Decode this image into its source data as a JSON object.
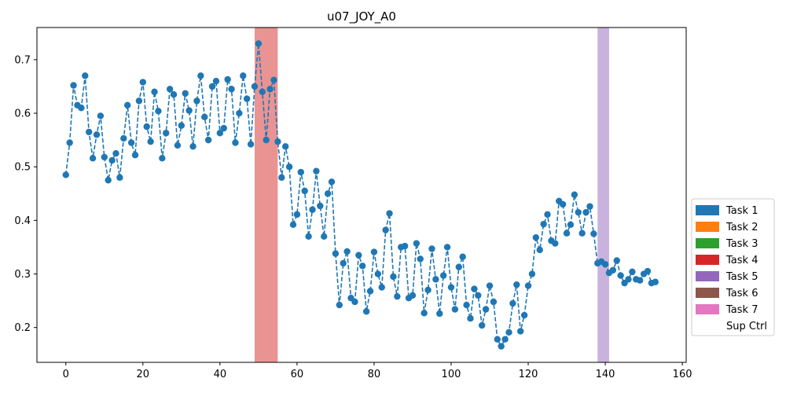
{
  "chart_data": {
    "type": "line",
    "title": "u07_JOY_A0",
    "xlabel": "",
    "ylabel": "",
    "xlim": [
      -7.5,
      161
    ],
    "ylim": [
      0.135,
      0.76
    ],
    "x_ticks": [
      0,
      20,
      40,
      60,
      80,
      100,
      120,
      140,
      160
    ],
    "y_ticks": [
      0.2,
      0.3,
      0.4,
      0.5,
      0.6,
      0.7
    ],
    "grid": false,
    "legend_position": "right",
    "series": [
      {
        "style": "dashed line with circle markers",
        "color": "#1f77b4",
        "x": [
          0,
          1,
          2,
          3,
          4,
          5,
          6,
          7,
          8,
          9,
          10,
          11,
          12,
          13,
          14,
          15,
          16,
          17,
          18,
          19,
          20,
          21,
          22,
          23,
          24,
          25,
          26,
          27,
          28,
          29,
          30,
          31,
          32,
          33,
          34,
          35,
          36,
          37,
          38,
          39,
          40,
          41,
          42,
          43,
          44,
          45,
          46,
          47,
          48,
          49,
          50,
          51,
          52,
          53,
          54,
          55,
          56,
          57,
          58,
          59,
          60,
          61,
          62,
          63,
          64,
          65,
          66,
          67,
          68,
          69,
          70,
          71,
          72,
          73,
          74,
          75,
          76,
          77,
          78,
          79,
          80,
          81,
          82,
          83,
          84,
          85,
          86,
          87,
          88,
          89,
          90,
          91,
          92,
          93,
          94,
          95,
          96,
          97,
          98,
          99,
          100,
          101,
          102,
          103,
          104,
          105,
          106,
          107,
          108,
          109,
          110,
          111,
          112,
          113,
          114,
          115,
          116,
          117,
          118,
          119,
          120,
          121,
          122,
          123,
          124,
          125,
          126,
          127,
          128,
          129,
          130,
          131,
          132,
          133,
          134,
          135,
          136,
          137,
          138,
          139,
          140,
          141,
          142,
          143,
          144,
          145,
          146,
          147,
          148,
          149,
          150,
          151,
          152,
          153
        ],
        "y": [
          0.485,
          0.545,
          0.652,
          0.615,
          0.61,
          0.67,
          0.565,
          0.516,
          0.56,
          0.595,
          0.518,
          0.475,
          0.512,
          0.525,
          0.48,
          0.553,
          0.615,
          0.545,
          0.522,
          0.623,
          0.658,
          0.575,
          0.547,
          0.64,
          0.604,
          0.516,
          0.563,
          0.645,
          0.635,
          0.54,
          0.577,
          0.637,
          0.605,
          0.538,
          0.623,
          0.67,
          0.593,
          0.55,
          0.65,
          0.66,
          0.563,
          0.572,
          0.663,
          0.645,
          0.545,
          0.6,
          0.67,
          0.627,
          0.542,
          0.65,
          0.73,
          0.64,
          0.55,
          0.645,
          0.662,
          0.547,
          0.48,
          0.538,
          0.5,
          0.392,
          0.411,
          0.49,
          0.455,
          0.37,
          0.42,
          0.492,
          0.427,
          0.37,
          0.45,
          0.472,
          0.338,
          0.242,
          0.32,
          0.342,
          0.255,
          0.248,
          0.335,
          0.315,
          0.23,
          0.268,
          0.341,
          0.3,
          0.275,
          0.382,
          0.413,
          0.295,
          0.258,
          0.35,
          0.352,
          0.255,
          0.26,
          0.357,
          0.328,
          0.227,
          0.27,
          0.347,
          0.29,
          0.226,
          0.297,
          0.35,
          0.275,
          0.234,
          0.313,
          0.332,
          0.242,
          0.217,
          0.272,
          0.26,
          0.204,
          0.234,
          0.278,
          0.248,
          0.178,
          0.165,
          0.178,
          0.191,
          0.245,
          0.28,
          0.193,
          0.223,
          0.278,
          0.3,
          0.368,
          0.345,
          0.393,
          0.411,
          0.362,
          0.357,
          0.436,
          0.43,
          0.376,
          0.392,
          0.448,
          0.415,
          0.376,
          0.415,
          0.426,
          0.375,
          0.32,
          0.323,
          0.318,
          0.302,
          0.307,
          0.325,
          0.297,
          0.283,
          0.29,
          0.304,
          0.29,
          0.288,
          0.3,
          0.305,
          0.283,
          0.285
        ]
      }
    ],
    "shaded_regions": [
      {
        "x0": 49,
        "x1": 55,
        "color": "#d62728",
        "alpha": 0.5
      },
      {
        "x0": 138,
        "x1": 141,
        "color": "#9467bd",
        "alpha": 0.5
      }
    ],
    "legend": [
      {
        "label": "Task 1",
        "color": "#1f77b4"
      },
      {
        "label": "Task 2",
        "color": "#ff7f0e"
      },
      {
        "label": "Task 3",
        "color": "#2ca02c"
      },
      {
        "label": "Task 4",
        "color": "#d62728"
      },
      {
        "label": "Task 5",
        "color": "#9467bd"
      },
      {
        "label": "Task 6",
        "color": "#8c564b"
      },
      {
        "label": "Task 7",
        "color": "#e377c2"
      },
      {
        "label": "Sup Ctrl",
        "color": "#ffffff"
      }
    ]
  }
}
